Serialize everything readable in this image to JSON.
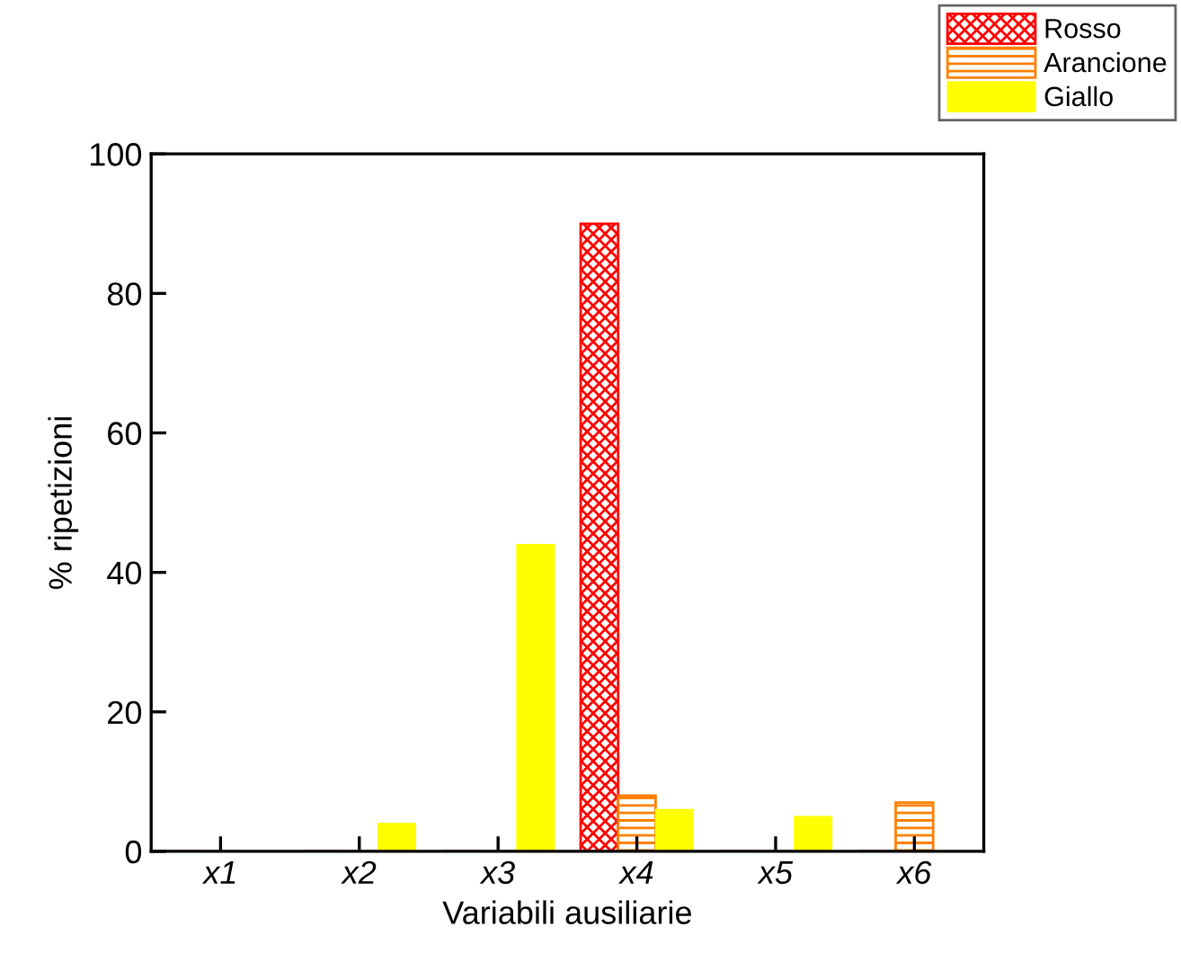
{
  "chart_data": {
    "type": "bar",
    "xlabel": "Variabili ausiliarie",
    "ylabel": "% ripetizioni",
    "categories": [
      "x1",
      "x2",
      "x3",
      "x4",
      "x5",
      "x6"
    ],
    "series": [
      {
        "name": "Rosso",
        "color": "#ff0000",
        "values": [
          0,
          0,
          0,
          90,
          0,
          0
        ]
      },
      {
        "name": "Arancione",
        "color": "#ff8000",
        "values": [
          0,
          0,
          0,
          8,
          0,
          7
        ]
      },
      {
        "name": "Giallo",
        "color": "#ffff00",
        "values": [
          0,
          4,
          44,
          6,
          5,
          0
        ]
      }
    ],
    "ylim": [
      0,
      100
    ],
    "yticks": [
      0,
      20,
      40,
      60,
      80,
      100
    ],
    "grid": false,
    "legend": "top right"
  }
}
